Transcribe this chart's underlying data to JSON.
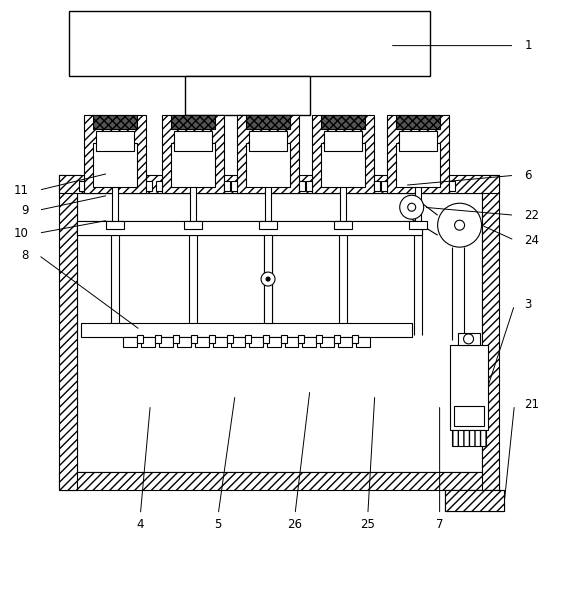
{
  "bg_color": "#ffffff",
  "line_color": "#000000",
  "figsize": [
    5.73,
    6.05
  ],
  "dpi": 100
}
